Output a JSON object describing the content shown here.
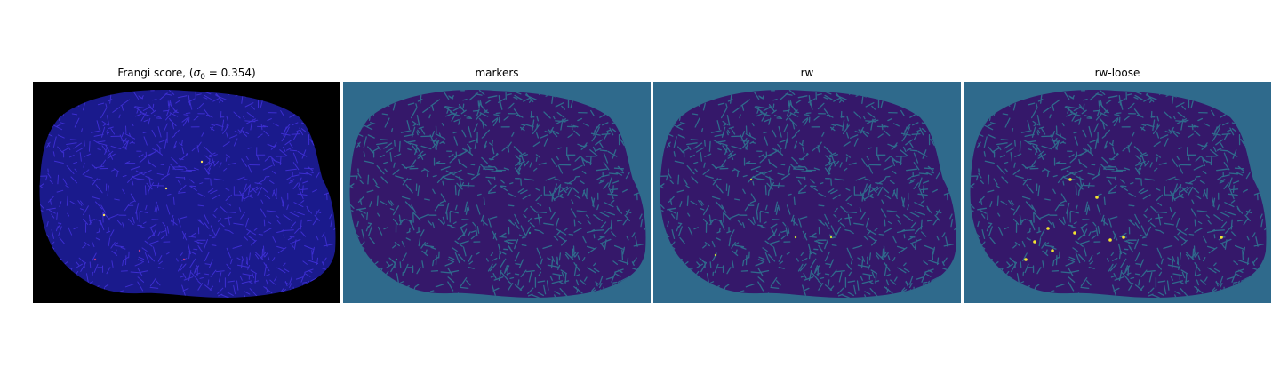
{
  "figure": {
    "panels": [
      {
        "id": "frangi",
        "title_prefix": "Frangi score, (",
        "title_sigma": "σ",
        "title_subscript": "0",
        "title_suffix": " = 0.354)",
        "background": "#000000",
        "tissue": "#1a1a8c",
        "line": "#3c2ed0",
        "highlight": "#f6e05a",
        "highlight2": "#b53a8a"
      },
      {
        "id": "markers",
        "title": "markers",
        "background": "#2f6a8c",
        "tissue": "#35186a",
        "line": "#2f6a8c",
        "highlight": "#2a8a8a"
      },
      {
        "id": "rw",
        "title": "rw",
        "background": "#2f6a8c",
        "tissue": "#35186a",
        "line": "#2f6a8c",
        "highlight": "#c8dc3a"
      },
      {
        "id": "rw-loose",
        "title": "rw-loose",
        "background": "#2f6a8c",
        "tissue": "#35186a",
        "line": "#2f6a8c",
        "highlight": "#f3e530"
      }
    ]
  }
}
